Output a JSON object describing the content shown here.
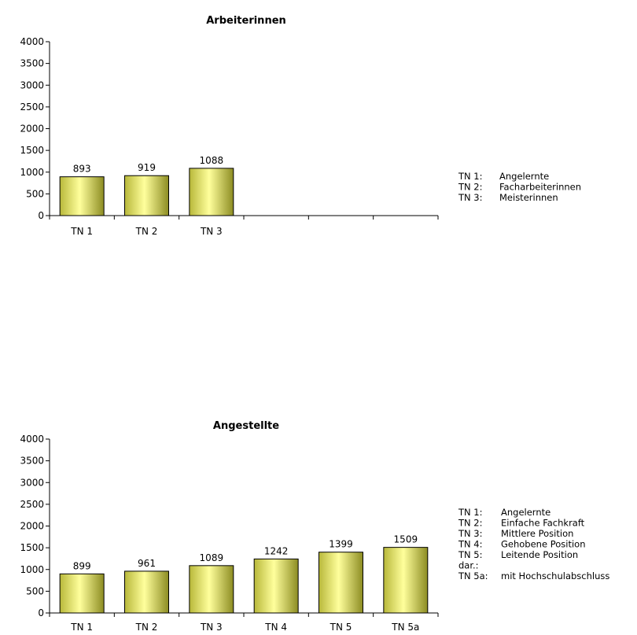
{
  "chart_data": [
    {
      "type": "bar",
      "title": "Arbeiterinnen",
      "categories": [
        "TN 1",
        "TN 2",
        "TN 3"
      ],
      "slots": 6,
      "values": [
        893,
        919,
        1088
      ],
      "ylim": [
        0,
        4000
      ],
      "yticks": [
        0,
        500,
        1000,
        1500,
        2000,
        2500,
        3000,
        3500,
        4000
      ],
      "grid": false,
      "bar_color": "#e6e66e",
      "legend": [
        {
          "key": "TN 1:",
          "text": "Angelernte"
        },
        {
          "key": "TN 2:",
          "text": "Facharbeiterinnen"
        },
        {
          "key": "TN 3:",
          "text": "Meisterinnen"
        }
      ]
    },
    {
      "type": "bar",
      "title": "Angestellte",
      "categories": [
        "TN 1",
        "TN 2",
        "TN 3",
        "TN 4",
        "TN 5",
        "TN 5a"
      ],
      "slots": 6,
      "values": [
        899,
        961,
        1089,
        1242,
        1399,
        1509
      ],
      "ylim": [
        0,
        4000
      ],
      "yticks": [
        0,
        500,
        1000,
        1500,
        2000,
        2500,
        3000,
        3500,
        4000
      ],
      "grid": false,
      "bar_color": "#e6e66e",
      "legend": [
        {
          "key": "TN 1:",
          "text": "Angelernte"
        },
        {
          "key": "TN 2:",
          "text": "Einfache Fachkraft"
        },
        {
          "key": "TN 3:",
          "text": "Mittlere Position"
        },
        {
          "key": "TN 4:",
          "text": "Gehobene Position"
        },
        {
          "key": "TN 5:",
          "text": "Leitende Position"
        },
        {
          "key": "dar.:",
          "text": ""
        },
        {
          "key": "TN 5a:",
          "text": "mit Hochschulabschluss"
        }
      ]
    }
  ]
}
